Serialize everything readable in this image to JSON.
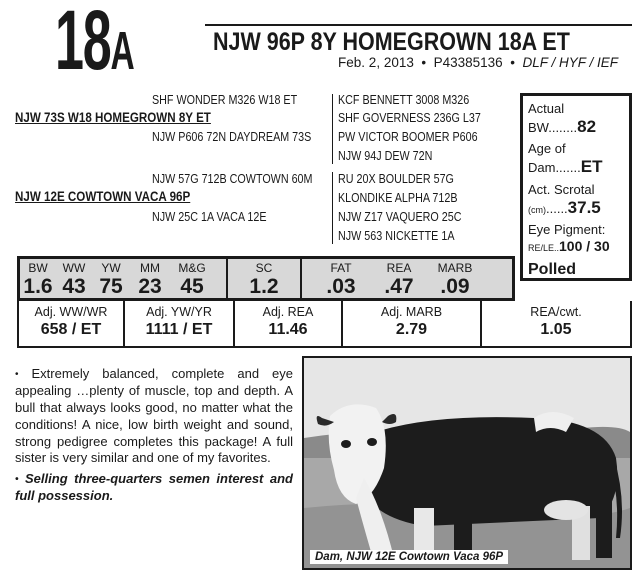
{
  "lot": {
    "number": "18",
    "suffix": "A"
  },
  "animal": {
    "name": "NJW 96P 8Y HOMEGROWN 18A ET",
    "birth_date": "Feb. 2, 2013",
    "registration": "P43385136",
    "codes": "DLF / HYF / IEF",
    "bullet": "•"
  },
  "pedigree": {
    "sire": "NJW 73S W18 HOMEGROWN 8Y ET",
    "sire_sire": "SHF WONDER M326 W18 ET",
    "sire_dam": "NJW P606 72N DAYDREAM 73S",
    "sire_sire_sire": "KCF BENNETT 3008 M326",
    "sire_sire_dam": "SHF GOVERNESS 236G L37",
    "sire_dam_sire": "PW VICTOR BOOMER P606",
    "sire_dam_dam": "NJW 94J DEW 72N",
    "dam": "NJW 12E COWTOWN VACA 96P",
    "dam_sire": "NJW 57G 712B COWTOWN 60M",
    "dam_dam": "NJW 25C 1A VACA 12E",
    "dam_sire_sire": "RU 20X BOULDER 57G",
    "dam_sire_dam": "KLONDIKE ALPHA 712B",
    "dam_dam_sire": "NJW Z17 VAQUERO 25C",
    "dam_dam_dam": "NJW 563 NICKETTE 1A"
  },
  "stats": {
    "actual_bw_label1": "Actual",
    "actual_bw_label2": "BW........",
    "actual_bw": "82",
    "age_label1": "Age of",
    "age_label2": "Dam.......",
    "age_value": "ET",
    "scrotal_label1": "Act. Scrotal",
    "scrotal_label2": "(cm)",
    "scrotal_dots": "......",
    "scrotal_value": "37.5",
    "pigment_label1": "Eye Pigment:",
    "pigment_label2": "RE/LE..",
    "pigment_value": "100 / 30",
    "polled": "Polled"
  },
  "epds": [
    {
      "label": "BW",
      "value": "1.6"
    },
    {
      "label": "WW",
      "value": "43"
    },
    {
      "label": "YW",
      "value": "75"
    },
    {
      "label": "MM",
      "value": "23"
    },
    {
      "label": "M&G",
      "value": "45"
    },
    {
      "label": "SC",
      "value": "1.2"
    },
    {
      "label": "FAT",
      "value": ".03"
    },
    {
      "label": "REA",
      "value": ".47"
    },
    {
      "label": "MARB",
      "value": ".09"
    }
  ],
  "adjusted": [
    {
      "label": "Adj. WW/WR",
      "value": "658 / ET"
    },
    {
      "label": "Adj. YW/YR",
      "value": "1111 / ET"
    },
    {
      "label": "Adj. REA",
      "value": "11.46"
    },
    {
      "label": "Adj. MARB",
      "value": "2.79"
    },
    {
      "label": "REA/cwt.",
      "value": "1.05"
    }
  ],
  "description": {
    "paragraph1": "Extremely balanced, complete and eye appealing …plenty of muscle, top and depth. A bull that always looks good, no matter what the conditions! A nice, low birth weight and sound, strong pedigree completes this package! A full sister is very similar and one of my favorites.",
    "paragraph2": "Selling three-quarters semen interest and full possession."
  },
  "photo": {
    "caption": "Dam, NJW 12E Cowtown Vaca 96P"
  }
}
